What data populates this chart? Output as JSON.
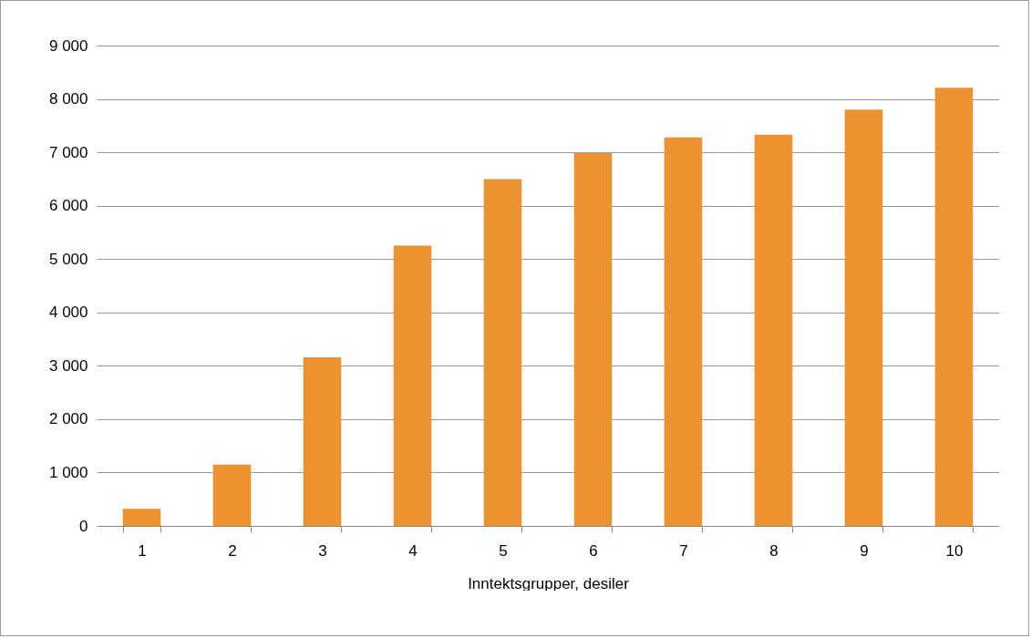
{
  "chart_data": {
    "type": "bar",
    "xlabel": "Inntektsgrupper, desiler",
    "categories": [
      "1",
      "2",
      "3",
      "4",
      "5",
      "6",
      "7",
      "8",
      "9",
      "10"
    ],
    "values": [
      320,
      1150,
      3160,
      5250,
      6500,
      6990,
      7280,
      7330,
      7800,
      8210
    ],
    "color": "#ed9230",
    "ylim": [
      0,
      9000
    ],
    "yticks": [
      0,
      {
        "value": 1000,
        "label": "1 000"
      },
      {
        "value": 2000,
        "label": "2 000"
      },
      {
        "value": 3000,
        "label": "3 000"
      },
      {
        "value": 4000,
        "label": "4 000"
      },
      {
        "value": 5000,
        "label": "5 000"
      },
      {
        "value": 6000,
        "label": "6 000"
      },
      {
        "value": 7000,
        "label": "7 000"
      },
      {
        "value": 8000,
        "label": "8 000"
      },
      {
        "value": 9000,
        "label": "9 000"
      }
    ],
    "grid": "y"
  }
}
